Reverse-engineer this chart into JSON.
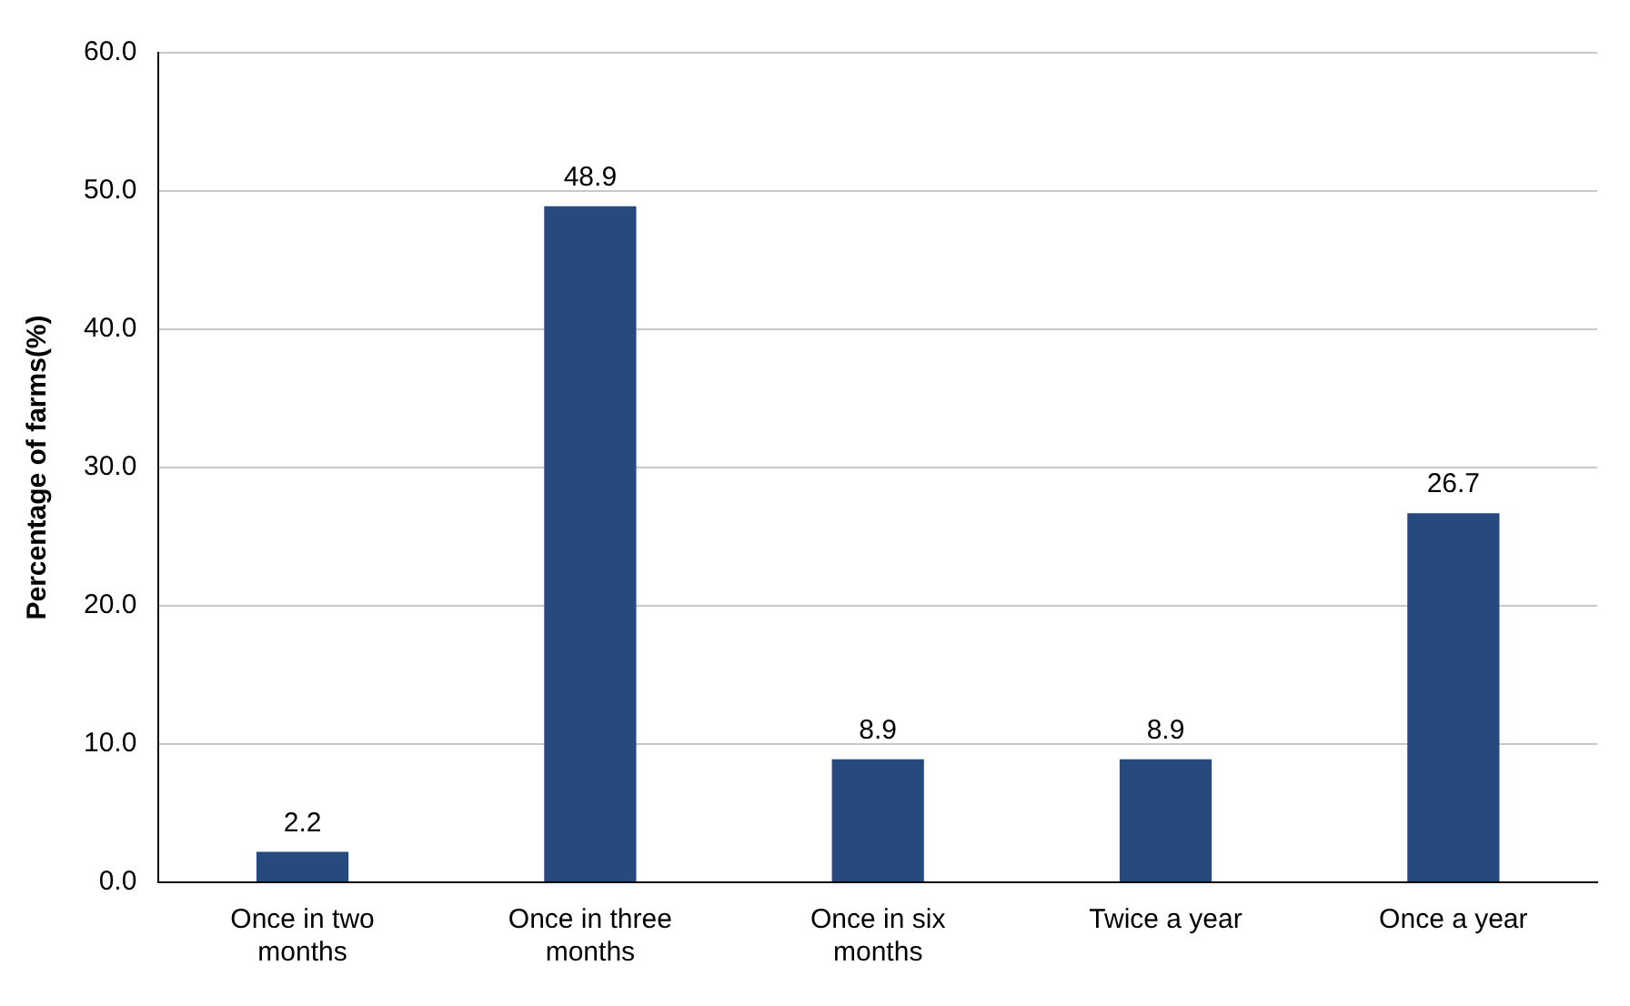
{
  "chart_data": {
    "type": "bar",
    "ylabel": "Percentage of farms(%)",
    "categories": [
      "Once in two months",
      "Once in three months",
      "Once in six months",
      "Twice a year",
      "Once a year"
    ],
    "values": [
      2.2,
      48.9,
      8.9,
      8.9,
      26.7
    ],
    "color": "#264a7e",
    "ylim": [
      0,
      60
    ],
    "yticks": [
      {
        "value": 0,
        "label": "0.0"
      },
      {
        "value": 10,
        "label": "10.0"
      },
      {
        "value": 20,
        "label": "20.0"
      },
      {
        "value": 30,
        "label": "30.0"
      },
      {
        "value": 40,
        "label": "40.0"
      },
      {
        "value": 50,
        "label": "50.0"
      },
      {
        "value": 60,
        "label": "60.0"
      }
    ],
    "grid": "y",
    "data_labels": true,
    "legend": false
  }
}
